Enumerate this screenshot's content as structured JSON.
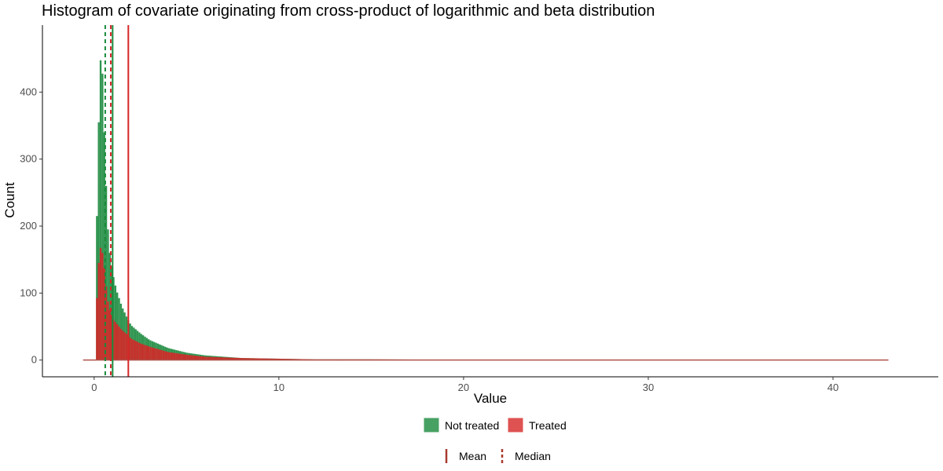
{
  "chart_data": {
    "type": "bar",
    "title": "Histogram of covariate originating from cross-product of logarithmic and beta distribution",
    "xlabel": "Value",
    "ylabel": "Count",
    "xlim": [
      -2.8,
      45.7
    ],
    "ylim": [
      -25,
      500
    ],
    "x_ticks": [
      0,
      10,
      20,
      30,
      40
    ],
    "y_ticks": [
      0,
      100,
      200,
      300,
      400
    ],
    "grid": false,
    "legend_position": "bottom",
    "series": [
      {
        "name": "Not treated",
        "color": "#1a8a3d",
        "x": [
          0.1,
          0.2,
          0.3,
          0.4,
          0.5,
          0.6,
          0.7,
          0.8,
          0.9,
          1.0,
          1.2,
          1.5,
          1.8,
          2.0,
          2.5,
          3.0,
          3.5,
          4.0,
          5.0,
          6.0,
          7.0,
          8.0,
          10.0,
          12.0,
          15.0,
          20.0,
          30.0,
          43.0
        ],
        "values": [
          140,
          290,
          420,
          475,
          380,
          300,
          220,
          170,
          150,
          130,
          105,
          80,
          62,
          52,
          40,
          30,
          24,
          18,
          11,
          7,
          5,
          3,
          2,
          1,
          1,
          0.5,
          0.5,
          0.5
        ]
      },
      {
        "name": "Treated",
        "color": "#d62728",
        "x": [
          0.1,
          0.2,
          0.3,
          0.4,
          0.5,
          0.6,
          0.7,
          0.8,
          0.9,
          1.0,
          1.2,
          1.5,
          1.8,
          2.0,
          2.5,
          3.0,
          3.5,
          4.0,
          5.0,
          6.0,
          7.0,
          8.0,
          10.0,
          12.0,
          15.0,
          20.0,
          30.0,
          43.0
        ],
        "values": [
          60,
          125,
          165,
          170,
          150,
          125,
          95,
          80,
          70,
          62,
          55,
          45,
          38,
          32,
          25,
          20,
          16,
          12,
          8,
          5,
          4,
          3,
          2,
          1,
          1,
          0.5,
          0.5,
          0.5
        ]
      }
    ],
    "reference_lines": [
      {
        "group": "Not treated",
        "stat": "Mean",
        "x": 1.0,
        "color": "#1a8a3d",
        "style": "solid"
      },
      {
        "group": "Not treated",
        "stat": "Median",
        "x": 0.6,
        "color": "#1a8a3d",
        "style": "dashed"
      },
      {
        "group": "Treated",
        "stat": "Mean",
        "x": 1.85,
        "color": "#d62728",
        "style": "solid"
      },
      {
        "group": "Treated",
        "stat": "Median",
        "x": 0.9,
        "color": "#d62728",
        "style": "dashed"
      }
    ],
    "baseline_range": [
      -0.6,
      43.0
    ],
    "legend_fill": [
      {
        "label": "Not treated",
        "color": "#1a8a3d"
      },
      {
        "label": "Treated",
        "color": "#d62728"
      }
    ],
    "legend_lines": [
      {
        "label": "Mean",
        "style": "solid",
        "color": "#a83a2e"
      },
      {
        "label": "Median",
        "style": "dashed",
        "color": "#a83a2e"
      }
    ]
  }
}
